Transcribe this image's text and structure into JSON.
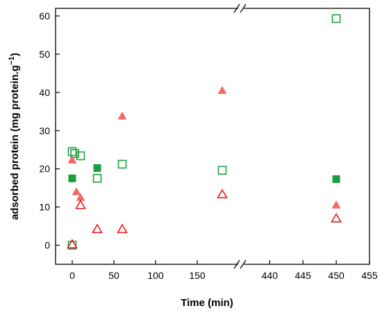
{
  "chart_data": {
    "type": "scatter",
    "xlabel": "Time (min)",
    "ylabel": "adsorbed protein (mg protein.g",
    "ylabel_superscript": "−1",
    "ylabel_close": ")",
    "ylim": [
      -5,
      62
    ],
    "y_ticks": [
      0,
      10,
      20,
      30,
      40,
      50,
      60
    ],
    "x_segments": [
      {
        "range": [
          -20,
          200
        ],
        "ticks": [
          0,
          50,
          100,
          150
        ]
      },
      {
        "range": [
          436,
          455
        ],
        "ticks": [
          440,
          445,
          450,
          455
        ]
      }
    ],
    "axis_break": true,
    "series": [
      {
        "marker": "filled-square",
        "color": "#1a9e3f",
        "points": [
          [
            0,
            17.5
          ],
          [
            30,
            20.2
          ],
          [
            450,
            17.3
          ]
        ]
      },
      {
        "marker": "open-square",
        "color": "#1a9e3f",
        "points": [
          [
            0,
            0
          ],
          [
            0,
            24.5
          ],
          [
            3,
            24
          ],
          [
            10,
            23.4
          ],
          [
            30,
            17.5
          ],
          [
            60,
            21.2
          ],
          [
            180,
            19.6
          ],
          [
            450,
            59.3
          ]
        ]
      },
      {
        "marker": "filled-triangle",
        "color": "#f06a6a",
        "points": [
          [
            0,
            22.3
          ],
          [
            5,
            14
          ],
          [
            10,
            12.5
          ],
          [
            60,
            33.8
          ],
          [
            180,
            40.5
          ],
          [
            450,
            10.5
          ]
        ]
      },
      {
        "marker": "open-triangle",
        "color": "#f01818",
        "points": [
          [
            0,
            0.2
          ],
          [
            10,
            10.5
          ],
          [
            30,
            4.2
          ],
          [
            60,
            4.2
          ],
          [
            180,
            13.3
          ],
          [
            450,
            7
          ]
        ]
      }
    ]
  }
}
